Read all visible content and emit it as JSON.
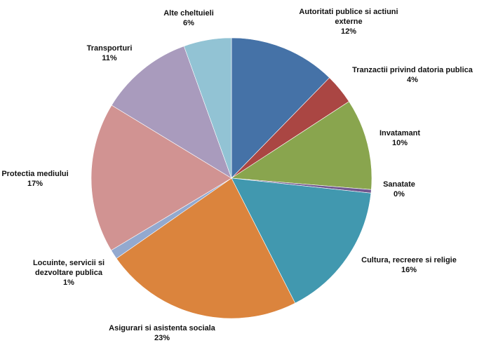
{
  "chart_data": {
    "type": "pie",
    "title": "",
    "start": "12 o'clock",
    "direction": "clockwise",
    "legend": "none",
    "slices": [
      {
        "label": "Autoritati publice si actiuni externe",
        "value": 12.3,
        "percent_label": "12%",
        "color": "#4572A7"
      },
      {
        "label": "Tranzactii privind datoria publica",
        "value": 3.5,
        "percent_label": "4%",
        "color": "#AA4643"
      },
      {
        "label": "Invatamant",
        "value": 10.5,
        "percent_label": "10%",
        "color": "#89A54E"
      },
      {
        "label": "Sanatate",
        "value": 0.4,
        "percent_label": "0%",
        "color": "#71588F"
      },
      {
        "label": "Cultura, recreere si religie",
        "value": 15.8,
        "percent_label": "16%",
        "color": "#4198AF"
      },
      {
        "label": "Asigurari si asistenta sociala",
        "value": 22.8,
        "percent_label": "23%",
        "color": "#DB843D"
      },
      {
        "label": "Locuinte, servicii si dezvoltare publica",
        "value": 1.1,
        "percent_label": "1%",
        "color": "#93A9CF"
      },
      {
        "label": "Protectia mediului",
        "value": 17.3,
        "percent_label": "17%",
        "color": "#D19392"
      },
      {
        "label": "Transporturi",
        "value": 10.8,
        "percent_label": "11%",
        "color": "#A99BBD"
      },
      {
        "label": "Alte cheltuieli",
        "value": 5.5,
        "percent_label": "6%",
        "color": "#92C3D4"
      }
    ]
  }
}
